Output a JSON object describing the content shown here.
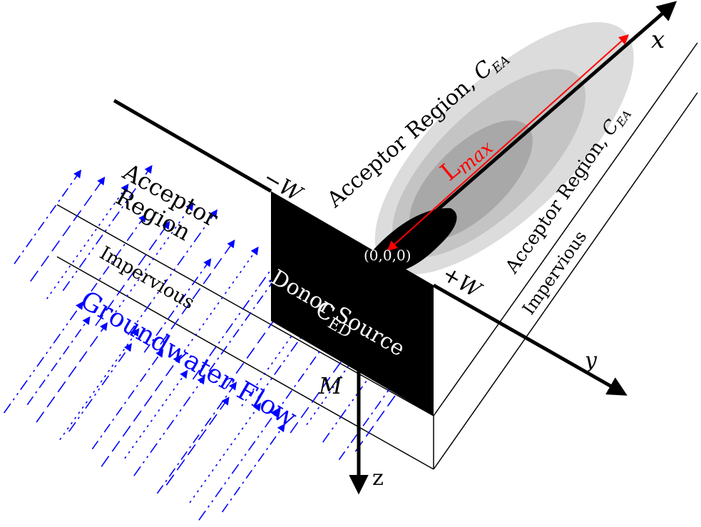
{
  "labels": {
    "x_axis": "x",
    "y_axis": "y",
    "z_axis": "z",
    "minus_w": "−W",
    "plus_w": "+W",
    "origin": "(0,0,0)",
    "m_label": "M",
    "l_max_base": "L",
    "l_max_sub": "max",
    "acceptor_top": "Acceptor Region, ",
    "acceptor_top_sym": "C",
    "acceptor_top_sub": "EA",
    "acceptor_right": "Acceptor Region, ",
    "acceptor_right_sym": "C",
    "acceptor_right_sub": "EA",
    "acceptor_left_1": "Acceptor",
    "acceptor_left_2": "Region",
    "impervious_left": "Impervious",
    "impervious_right": "Impervious",
    "donor_1": "Donor Source",
    "donor_2_base": "C",
    "donor_2_sub": "ED",
    "flow": "Groundwater Flow"
  },
  "colors": {
    "axis": "#000000",
    "lmax": "#ff0000",
    "flow": "#0000ff",
    "donor": "#000000",
    "plume_outer": "#dcdcdc",
    "plume_mid": "#c4c4c4",
    "plume_inner": "#a8a8a8"
  }
}
